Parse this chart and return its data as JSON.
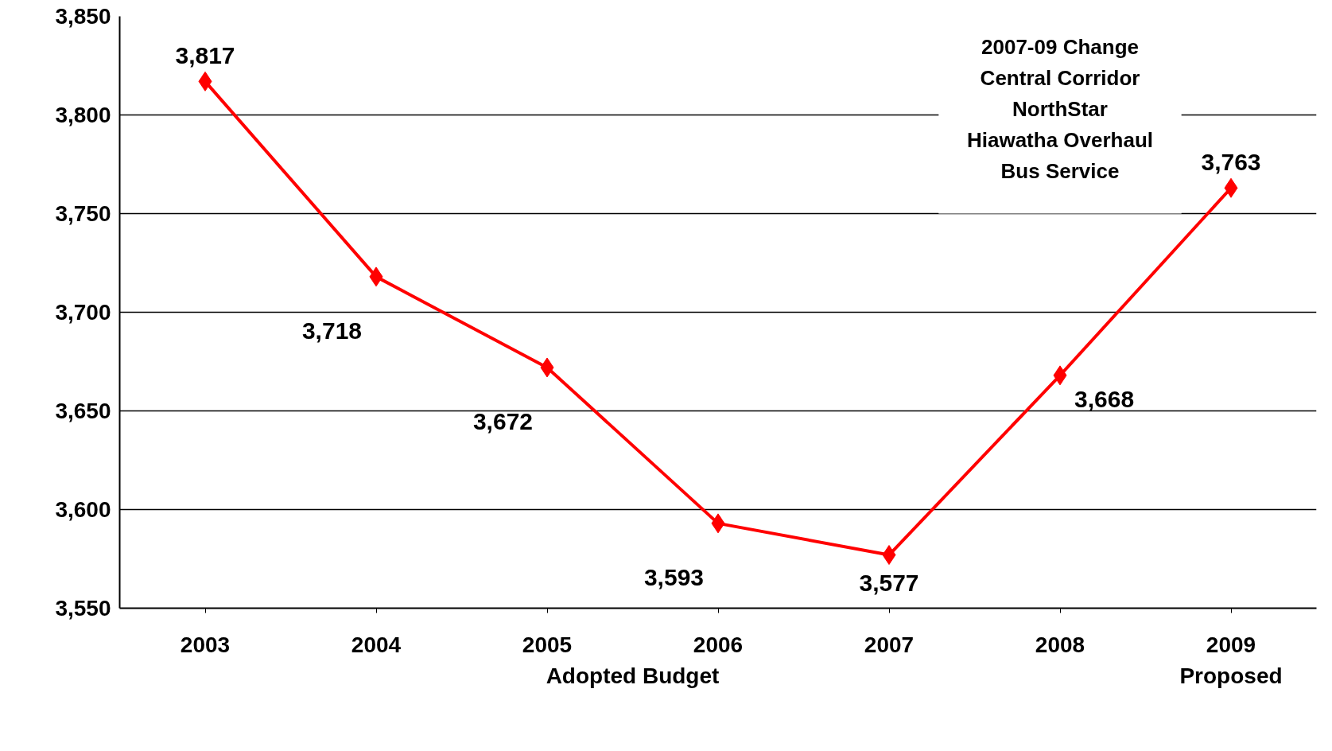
{
  "chart_data": {
    "type": "line",
    "categories": [
      "2003",
      "2004",
      "2005",
      "2006",
      "2007",
      "2008",
      "2009"
    ],
    "series": [
      {
        "color": "#ff0000",
        "values": [
          3817,
          3718,
          3672,
          3593,
          3577,
          3668,
          3763
        ]
      }
    ],
    "ylim": [
      3550,
      3850
    ],
    "yticks": [
      {
        "value": 3550,
        "label": "3,550"
      },
      {
        "value": 3600,
        "label": "3,600"
      },
      {
        "value": 3650,
        "label": "3,650"
      },
      {
        "value": 3700,
        "label": "3,700"
      },
      {
        "value": 3750,
        "label": "3,750"
      },
      {
        "value": 3800,
        "label": "3,800"
      },
      {
        "value": 3850,
        "label": "3,850"
      }
    ],
    "value_labels": [
      "3,817",
      "3,718",
      "3,672",
      "3,593",
      "3,577",
      "3,668",
      "3,763"
    ],
    "grid": "y",
    "marker": "diamond",
    "line_style": "solid",
    "legend": false,
    "annotations": [
      "2007-09 Change",
      "Central Corridor",
      "NorthStar",
      "Hiawatha Overhaul",
      "Bus Service",
      "Adopted Budget",
      "Proposed"
    ]
  }
}
